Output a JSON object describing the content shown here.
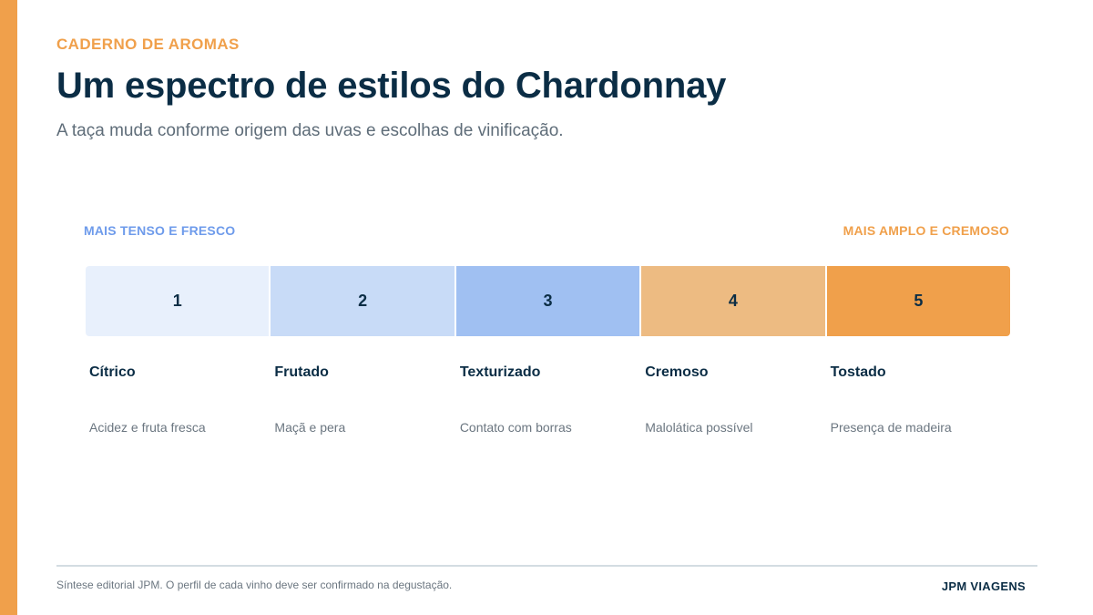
{
  "header": {
    "eyebrow": "CADERNO DE AROMAS",
    "title": "Um espectro de estilos do Chardonnay",
    "subtitle": "A taça muda conforme origem das uvas e escolhas de vinificação."
  },
  "spectrum": {
    "left_label": "MAIS TENSO E FRESCO",
    "right_label": "MAIS AMPLO E CREMOSO",
    "steps": [
      {
        "number": "1",
        "name": "Cítrico",
        "description": "Acidez e fruta fresca",
        "color": "#E8F0FC"
      },
      {
        "number": "2",
        "name": "Frutado",
        "description": "Maçã e pera",
        "color": "#C8DBF7"
      },
      {
        "number": "3",
        "name": "Texturizado",
        "description": "Contato com borras",
        "color": "#A0C0F2"
      },
      {
        "number": "4",
        "name": "Cremoso",
        "description": "Malolática possível",
        "color": "#EDBB82"
      },
      {
        "number": "5",
        "name": "Tostado",
        "description": "Presença de madeira",
        "color": "#F0A04B"
      }
    ]
  },
  "footer": {
    "note": "Síntese editorial JPM. O perfil de cada vinho deve ser confirmado na degustação.",
    "brand": "JPM VIAGENS"
  },
  "colors": {
    "accent": "#F0A04B",
    "cool": "#6E9BEB",
    "ink": "#0B2D45"
  }
}
